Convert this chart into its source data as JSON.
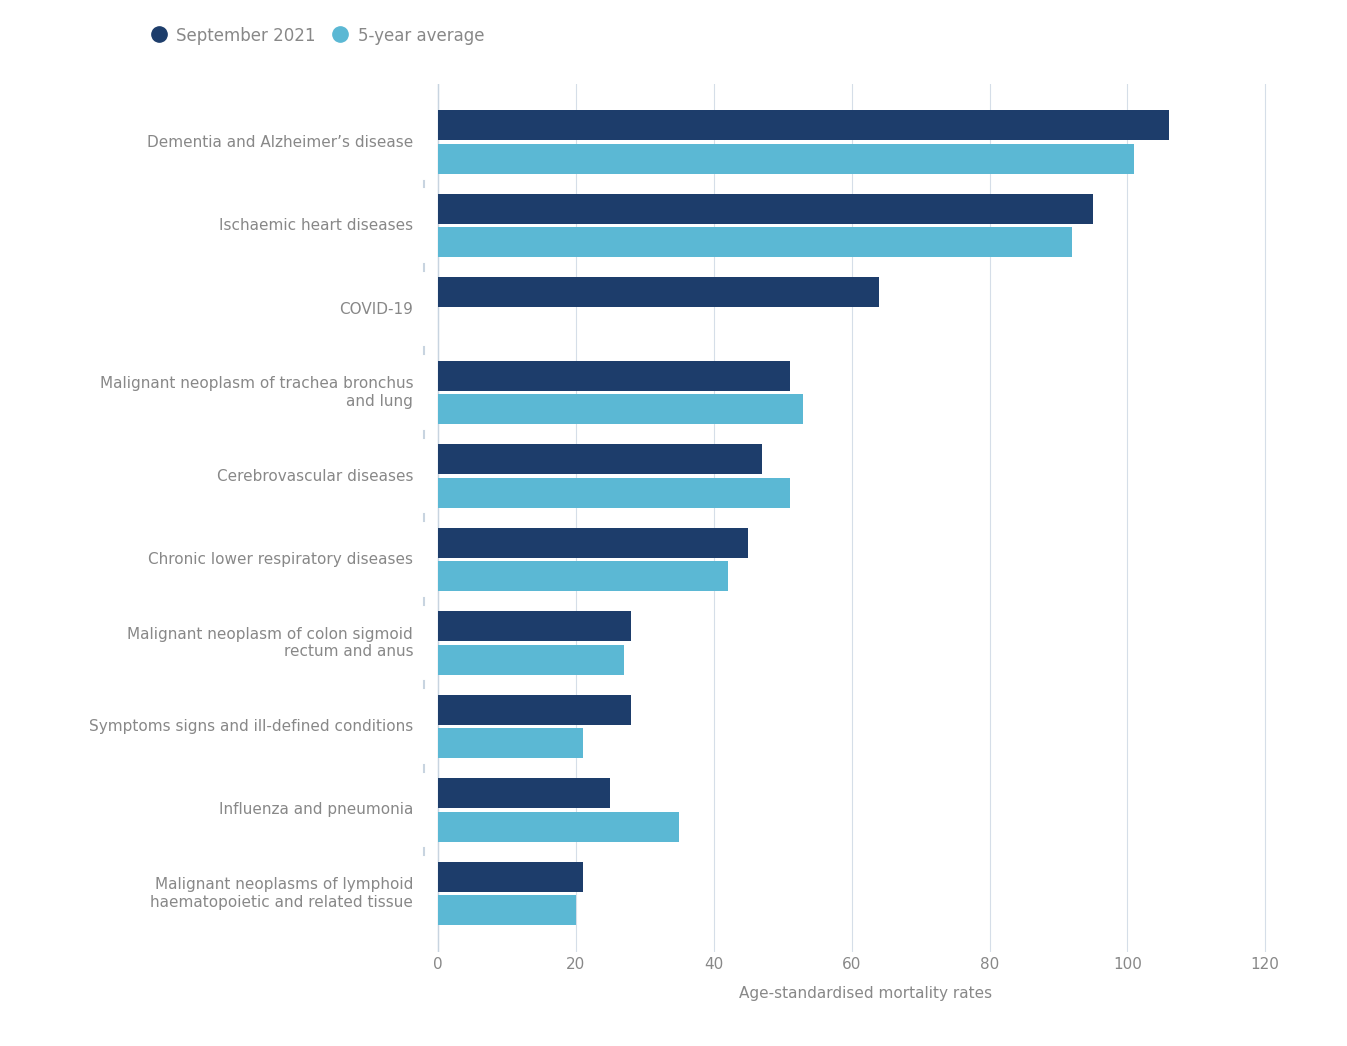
{
  "categories": [
    "Malignant neoplasms of lymphoid\nhaematopoietic and related tissue",
    "Influenza and pneumonia",
    "Symptoms signs and ill-defined conditions",
    "Malignant neoplasm of colon sigmoid\nrectum and anus",
    "Chronic lower respiratory diseases",
    "Cerebrovascular diseases",
    "Malignant neoplasm of trachea bronchus\nand lung",
    "COVID-19",
    "Ischaemic heart diseases",
    "Dementia and Alzheimer’s disease"
  ],
  "sept_2021": [
    21,
    25,
    28,
    28,
    45,
    47,
    51,
    64,
    95,
    106
  ],
  "five_year_avg": [
    20,
    35,
    21,
    27,
    42,
    51,
    53,
    0,
    92,
    101
  ],
  "color_sept": "#1d3d6b",
  "color_avg": "#5bb8d4",
  "background_color": "#ffffff",
  "xlabel": "Age-standardised mortality rates",
  "xlim": [
    -2,
    126
  ],
  "xticks": [
    0,
    20,
    40,
    60,
    80,
    100,
    120
  ],
  "legend_sept": "September 2021",
  "legend_avg": "5-year average",
  "bar_height": 0.36,
  "title_color": "#666666",
  "label_color": "#888888",
  "grid_color": "#d5dee8",
  "divider_color": "#c8d4e0"
}
